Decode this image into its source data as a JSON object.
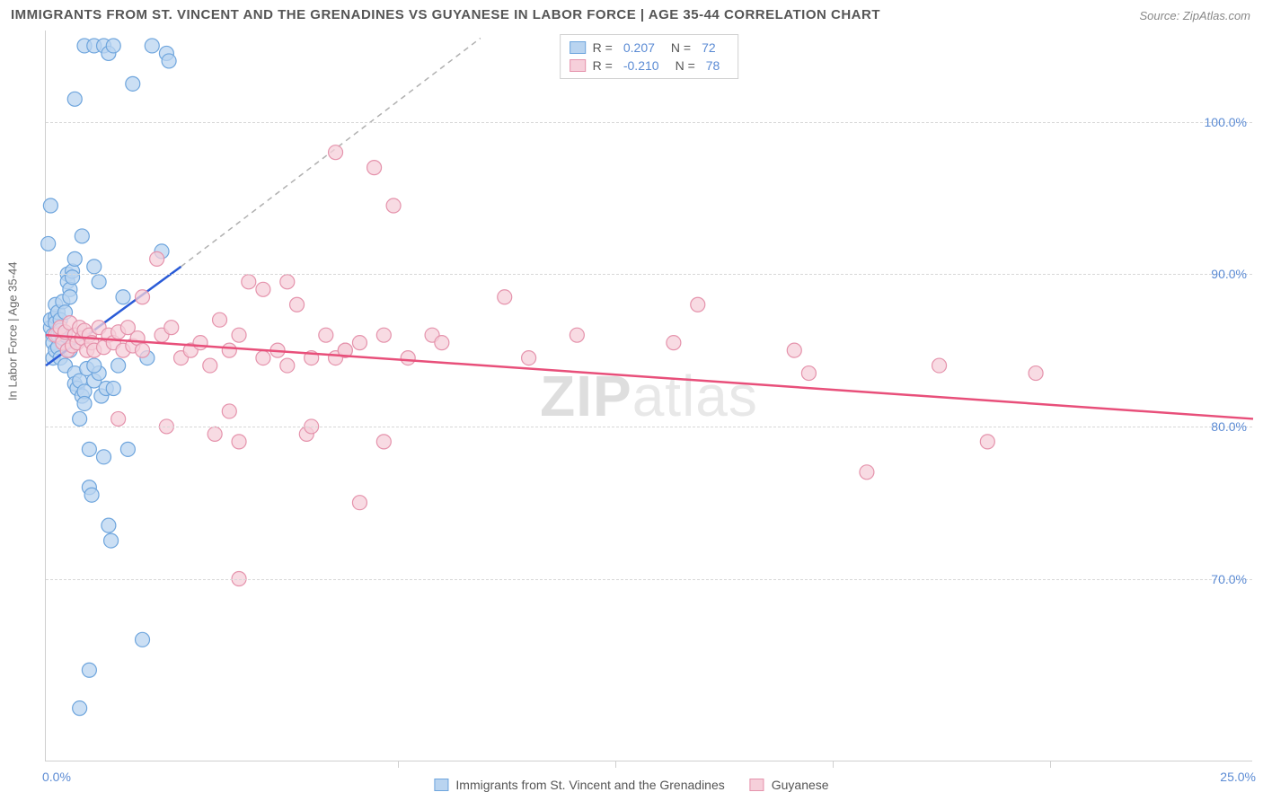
{
  "title": "IMMIGRANTS FROM ST. VINCENT AND THE GRENADINES VS GUYANESE IN LABOR FORCE | AGE 35-44 CORRELATION CHART",
  "source": "Source: ZipAtlas.com",
  "ylabel": "In Labor Force | Age 35-44",
  "watermark_a": "ZIP",
  "watermark_b": "atlas",
  "chart": {
    "type": "scatter",
    "xlim": [
      0,
      25
    ],
    "ylim": [
      58,
      106
    ],
    "xticks": [
      0,
      25
    ],
    "xtick_labels": [
      "0.0%",
      "25.0%"
    ],
    "xtick_minors": [
      7.3,
      11.8,
      16.3,
      20.8
    ],
    "yticks": [
      70,
      80,
      90,
      100
    ],
    "ytick_labels": [
      "70.0%",
      "80.0%",
      "90.0%",
      "100.0%"
    ],
    "grid_color": "#d8d8d8",
    "background_color": "#ffffff",
    "series": [
      {
        "name": "Immigrants from St. Vincent and the Grenadines",
        "marker_fill": "#b9d4f0",
        "marker_stroke": "#6ea5dd",
        "marker_radius": 8,
        "marker_opacity": 0.75,
        "trend_color": "#2a5bd7",
        "trend_width": 2.5,
        "trend": {
          "x1": 0,
          "y1": 84.0,
          "x2": 2.8,
          "y2": 90.5
        },
        "trend_dash": {
          "x1": 2.8,
          "y1": 90.5,
          "x2": 9.0,
          "y2": 105.5
        },
        "R": "0.207",
        "N": "72",
        "points": [
          [
            0.1,
            86.5
          ],
          [
            0.1,
            87.0
          ],
          [
            0.15,
            86.0
          ],
          [
            0.15,
            85.5
          ],
          [
            0.15,
            84.5
          ],
          [
            0.2,
            87.2
          ],
          [
            0.2,
            86.8
          ],
          [
            0.2,
            85.0
          ],
          [
            0.2,
            88.0
          ],
          [
            0.25,
            86.0
          ],
          [
            0.25,
            87.5
          ],
          [
            0.25,
            85.2
          ],
          [
            0.3,
            84.5
          ],
          [
            0.3,
            87.0
          ],
          [
            0.3,
            86.3
          ],
          [
            0.35,
            85.8
          ],
          [
            0.35,
            88.2
          ],
          [
            0.4,
            86.0
          ],
          [
            0.4,
            87.5
          ],
          [
            0.4,
            84.0
          ],
          [
            0.45,
            90.0
          ],
          [
            0.45,
            89.5
          ],
          [
            0.5,
            89.0
          ],
          [
            0.5,
            88.5
          ],
          [
            0.5,
            85.0
          ],
          [
            0.55,
            90.2
          ],
          [
            0.55,
            89.8
          ],
          [
            0.6,
            91.0
          ],
          [
            0.6,
            83.5
          ],
          [
            0.6,
            82.8
          ],
          [
            0.65,
            82.5
          ],
          [
            0.7,
            83.0
          ],
          [
            0.7,
            80.5
          ],
          [
            0.75,
            92.5
          ],
          [
            0.75,
            82.0
          ],
          [
            0.8,
            82.3
          ],
          [
            0.8,
            81.5
          ],
          [
            0.85,
            83.8
          ],
          [
            0.9,
            78.5
          ],
          [
            0.9,
            76.0
          ],
          [
            0.95,
            75.5
          ],
          [
            1.0,
            83.0
          ],
          [
            1.0,
            90.5
          ],
          [
            1.1,
            89.5
          ],
          [
            1.1,
            83.5
          ],
          [
            1.15,
            82.0
          ],
          [
            1.2,
            78.0
          ],
          [
            1.25,
            82.5
          ],
          [
            1.3,
            73.5
          ],
          [
            1.35,
            72.5
          ],
          [
            0.05,
            92.0
          ],
          [
            0.1,
            94.5
          ],
          [
            0.6,
            101.5
          ],
          [
            0.8,
            105.0
          ],
          [
            1.0,
            105.0
          ],
          [
            1.2,
            105.0
          ],
          [
            1.3,
            104.5
          ],
          [
            1.4,
            105.0
          ],
          [
            1.8,
            102.5
          ],
          [
            2.0,
            66.0
          ],
          [
            0.9,
            64.0
          ],
          [
            0.7,
            61.5
          ],
          [
            1.0,
            84.0
          ],
          [
            1.4,
            82.5
          ],
          [
            1.6,
            88.5
          ],
          [
            2.1,
            84.5
          ],
          [
            2.2,
            105.0
          ],
          [
            2.5,
            104.5
          ],
          [
            2.55,
            104.0
          ],
          [
            2.4,
            91.5
          ],
          [
            1.5,
            84.0
          ],
          [
            1.7,
            78.5
          ]
        ]
      },
      {
        "name": "Guyanese",
        "marker_fill": "#f6cfda",
        "marker_stroke": "#e593ac",
        "marker_radius": 8,
        "marker_opacity": 0.75,
        "trend_color": "#e84f7a",
        "trend_width": 2.5,
        "trend": {
          "x1": 0,
          "y1": 86.0,
          "x2": 25,
          "y2": 80.5
        },
        "R": "-0.210",
        "N": "78",
        "points": [
          [
            0.2,
            86.0
          ],
          [
            0.3,
            86.5
          ],
          [
            0.35,
            85.5
          ],
          [
            0.4,
            86.2
          ],
          [
            0.45,
            85.0
          ],
          [
            0.5,
            86.8
          ],
          [
            0.55,
            85.3
          ],
          [
            0.6,
            86.0
          ],
          [
            0.65,
            85.5
          ],
          [
            0.7,
            86.5
          ],
          [
            0.75,
            85.8
          ],
          [
            0.8,
            86.3
          ],
          [
            0.85,
            85.0
          ],
          [
            0.9,
            86.0
          ],
          [
            0.95,
            85.5
          ],
          [
            1.0,
            85.0
          ],
          [
            1.1,
            86.5
          ],
          [
            1.2,
            85.2
          ],
          [
            1.3,
            86.0
          ],
          [
            1.4,
            85.5
          ],
          [
            1.5,
            86.2
          ],
          [
            1.6,
            85.0
          ],
          [
            1.7,
            86.5
          ],
          [
            1.8,
            85.3
          ],
          [
            1.9,
            85.8
          ],
          [
            2.0,
            88.5
          ],
          [
            2.0,
            85.0
          ],
          [
            2.3,
            91.0
          ],
          [
            2.4,
            86.0
          ],
          [
            2.6,
            86.5
          ],
          [
            2.8,
            84.5
          ],
          [
            3.0,
            85.0
          ],
          [
            3.2,
            85.5
          ],
          [
            3.4,
            84.0
          ],
          [
            3.5,
            79.5
          ],
          [
            3.6,
            87.0
          ],
          [
            3.8,
            85.0
          ],
          [
            4.0,
            79.0
          ],
          [
            4.0,
            86.0
          ],
          [
            4.2,
            89.5
          ],
          [
            4.5,
            89.0
          ],
          [
            4.5,
            84.5
          ],
          [
            4.8,
            85.0
          ],
          [
            5.0,
            84.0
          ],
          [
            5.0,
            89.5
          ],
          [
            5.2,
            88.0
          ],
          [
            5.4,
            79.5
          ],
          [
            5.5,
            80.0
          ],
          [
            5.8,
            86.0
          ],
          [
            6.0,
            84.5
          ],
          [
            6.0,
            98.0
          ],
          [
            6.2,
            85.0
          ],
          [
            6.5,
            85.5
          ],
          [
            6.5,
            75.0
          ],
          [
            6.8,
            97.0
          ],
          [
            7.0,
            86.0
          ],
          [
            7.0,
            79.0
          ],
          [
            7.2,
            94.5
          ],
          [
            7.5,
            84.5
          ],
          [
            8.0,
            86.0
          ],
          [
            8.2,
            85.5
          ],
          [
            9.5,
            88.5
          ],
          [
            10.0,
            84.5
          ],
          [
            11.0,
            86.0
          ],
          [
            13.0,
            85.5
          ],
          [
            13.5,
            88.0
          ],
          [
            15.5,
            85.0
          ],
          [
            15.8,
            83.5
          ],
          [
            17.0,
            77.0
          ],
          [
            18.5,
            84.0
          ],
          [
            19.5,
            79.0
          ],
          [
            20.5,
            83.5
          ],
          [
            4.0,
            70.0
          ],
          [
            5.5,
            84.5
          ],
          [
            6.2,
            85.0
          ],
          [
            1.5,
            80.5
          ],
          [
            2.5,
            80.0
          ],
          [
            3.8,
            81.0
          ]
        ]
      }
    ]
  },
  "legend_top": {
    "rows": [
      {
        "swatch_fill": "#b9d4f0",
        "swatch_stroke": "#6ea5dd",
        "r_label": "R =",
        "r": "0.207",
        "n_label": "N =",
        "n": "72"
      },
      {
        "swatch_fill": "#f6cfda",
        "swatch_stroke": "#e593ac",
        "r_label": "R =",
        "r": "-0.210",
        "n_label": "N =",
        "n": "78"
      }
    ]
  },
  "legend_bottom": {
    "items": [
      {
        "swatch_fill": "#b9d4f0",
        "swatch_stroke": "#6ea5dd",
        "label": "Immigrants from St. Vincent and the Grenadines"
      },
      {
        "swatch_fill": "#f6cfda",
        "swatch_stroke": "#e593ac",
        "label": "Guyanese"
      }
    ]
  }
}
